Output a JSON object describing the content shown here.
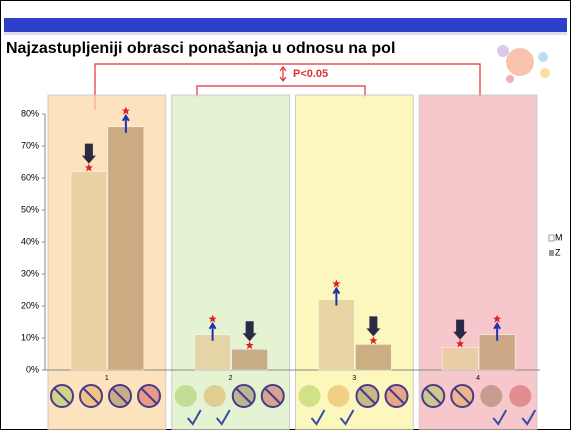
{
  "chart_data": {
    "type": "bar",
    "title": "Najzastupljeniji obrasci ponašanja u odnosu na pol",
    "annotation": "P<0.05",
    "categories": [
      "1",
      "2",
      "3",
      "4"
    ],
    "series": [
      {
        "name": "M",
        "color": "#e6cf9f",
        "values": [
          62,
          11,
          22,
          7
        ]
      },
      {
        "name": "Z",
        "color": "#c4a27a",
        "values": [
          76,
          6.5,
          8,
          11
        ]
      }
    ],
    "band_colors": [
      "#fbd9a8",
      "#dcefc4",
      "#fbf5a6",
      "#f3b6bb"
    ],
    "ylim": [
      0,
      80
    ],
    "yticks": [
      {
        "value": 0,
        "label": "0%"
      },
      {
        "value": 10,
        "label": "10%"
      },
      {
        "value": 20,
        "label": "20%"
      },
      {
        "value": 30,
        "label": "30%"
      },
      {
        "value": 40,
        "label": "40%"
      },
      {
        "value": 50,
        "label": "50%"
      },
      {
        "value": 60,
        "label": "60%"
      },
      {
        "value": 70,
        "label": "70%"
      },
      {
        "value": 80,
        "label": "80%"
      }
    ],
    "legend": "right"
  }
}
